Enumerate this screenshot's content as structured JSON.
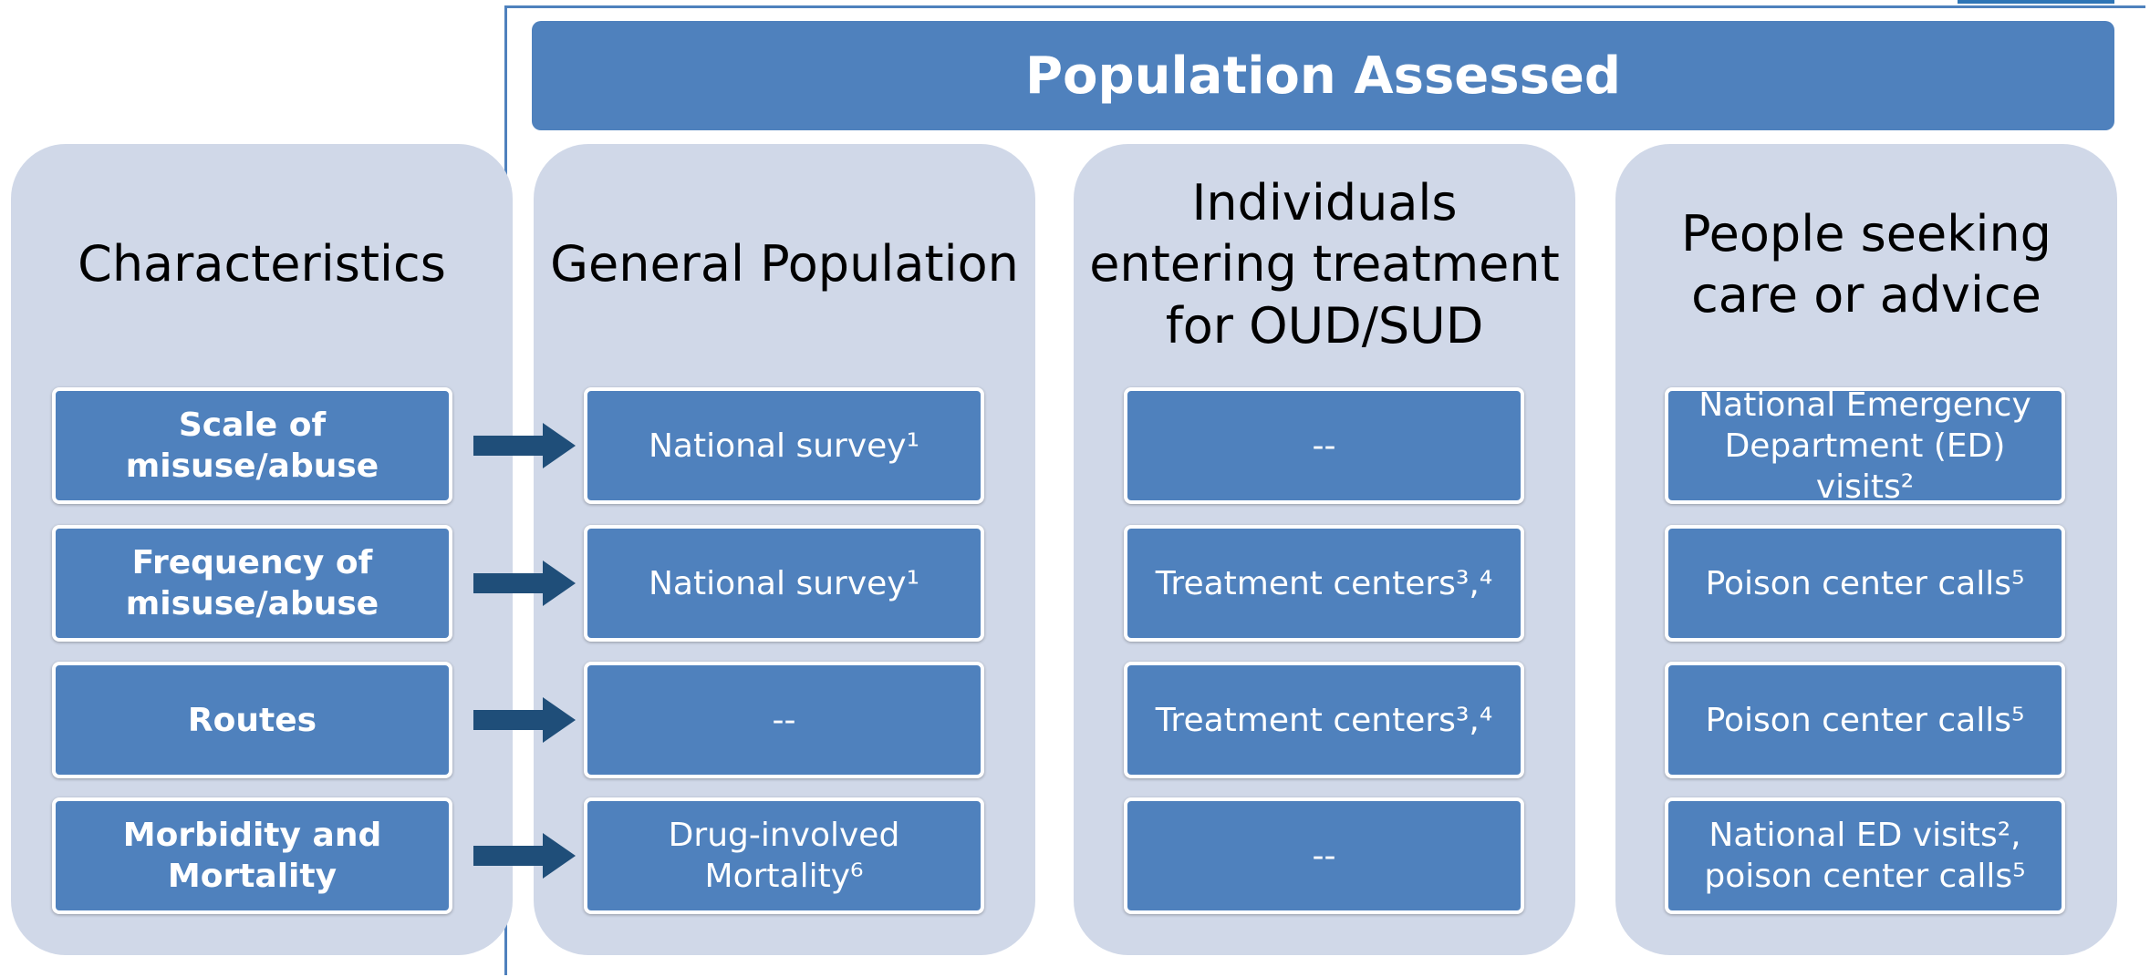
{
  "header": {
    "title": "Population Assessed"
  },
  "columns": [
    {
      "title": "Characteristics",
      "cells": [
        "Scale of misuse/abuse",
        "Frequency of misuse/abuse",
        "Routes",
        "Morbidity and Mortality"
      ]
    },
    {
      "title": "General Population",
      "cells": [
        "National survey¹",
        "National survey¹",
        "--",
        "Drug-involved Mortality⁶"
      ]
    },
    {
      "title": "Individuals entering treatment for OUD/SUD",
      "cells": [
        "--",
        "Treatment centers³,⁴",
        "Treatment centers³,⁴",
        "--"
      ]
    },
    {
      "title": "People seeking care or advice",
      "cells": [
        "National Emergency Department (ED) visits²",
        "Poison center calls⁵",
        "Poison center calls⁵",
        "National ED visits², poison center calls⁵"
      ]
    }
  ]
}
